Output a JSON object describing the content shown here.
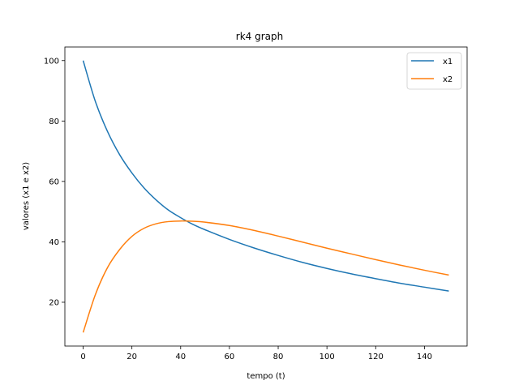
{
  "chart_data": {
    "type": "line",
    "title": "rk4 graph",
    "xlabel": "tempo (t)",
    "ylabel": "valores (x1 e x2)",
    "xlim": [
      -7.5,
      157.5
    ],
    "ylim": [
      5.5,
      104.5
    ],
    "xticks": [
      0,
      20,
      40,
      60,
      80,
      100,
      120,
      140
    ],
    "yticks": [
      20,
      40,
      60,
      80,
      100
    ],
    "grid": false,
    "legend_position": "top-right",
    "x": [
      0,
      5,
      10,
      15,
      20,
      25,
      30,
      35,
      40,
      45,
      50,
      60,
      70,
      80,
      90,
      100,
      110,
      120,
      130,
      140,
      150
    ],
    "series": [
      {
        "name": "x1",
        "color": "#1f77b4",
        "values": [
          100,
          86.5,
          76.5,
          68.8,
          62.8,
          57.8,
          53.8,
          50.5,
          48.0,
          45.8,
          44.0,
          40.8,
          38.0,
          35.5,
          33.2,
          31.2,
          29.4,
          27.8,
          26.3,
          25.0,
          23.7
        ]
      },
      {
        "name": "x2",
        "color": "#ff7f0e",
        "values": [
          10,
          22.5,
          31.5,
          37.5,
          41.8,
          44.5,
          46.0,
          46.7,
          46.9,
          46.8,
          46.5,
          45.4,
          43.8,
          41.9,
          39.9,
          37.9,
          36.0,
          34.1,
          32.3,
          30.6,
          29.0
        ]
      }
    ]
  }
}
